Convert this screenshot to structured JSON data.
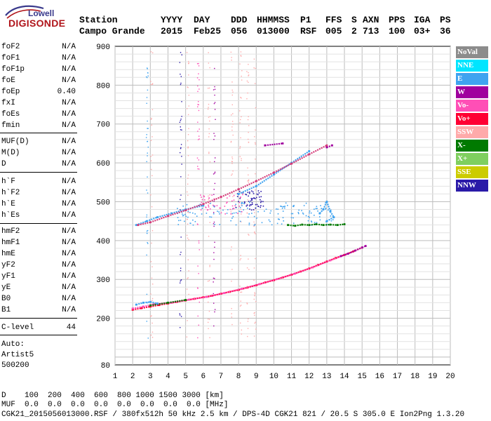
{
  "logo": {
    "top": "Lowell",
    "bottom": "DIGISONDE"
  },
  "header": {
    "labels": [
      "Station",
      "YYYY",
      "DAY",
      "DDD",
      "HHMMSS",
      "P1",
      "FFS",
      "S",
      "AXN",
      "PPS",
      "IGA",
      "PS"
    ],
    "values": [
      "Campo Grande",
      "2015",
      "Feb25",
      "056",
      "013000",
      "RSF",
      "005",
      "2",
      "713",
      "100",
      "03+",
      "36"
    ]
  },
  "params": {
    "group1": [
      {
        "name": "foF2",
        "value": "N/A"
      },
      {
        "name": "foF1",
        "value": "N/A"
      },
      {
        "name": "foF1p",
        "value": "N/A"
      },
      {
        "name": "foE",
        "value": "N/A"
      },
      {
        "name": "foEp",
        "value": "0.40"
      },
      {
        "name": "fxI",
        "value": "N/A"
      },
      {
        "name": "foEs",
        "value": "N/A"
      },
      {
        "name": "fmin",
        "value": "N/A"
      }
    ],
    "group2": [
      {
        "name": "MUF(D)",
        "value": "N/A"
      },
      {
        "name": "M(D)",
        "value": "N/A"
      },
      {
        "name": "D",
        "value": "N/A"
      }
    ],
    "group3": [
      {
        "name": "h`F",
        "value": "N/A"
      },
      {
        "name": "h`F2",
        "value": "N/A"
      },
      {
        "name": "h`E",
        "value": "N/A"
      },
      {
        "name": "h`Es",
        "value": "N/A"
      }
    ],
    "group4": [
      {
        "name": "hmF2",
        "value": "N/A"
      },
      {
        "name": "hmF1",
        "value": "N/A"
      },
      {
        "name": "hmE",
        "value": "N/A"
      },
      {
        "name": "yF2",
        "value": "N/A"
      },
      {
        "name": "yF1",
        "value": "N/A"
      },
      {
        "name": "yE",
        "value": "N/A"
      },
      {
        "name": "B0",
        "value": "N/A"
      },
      {
        "name": "B1",
        "value": "N/A"
      }
    ],
    "clevel": {
      "name": "C-level",
      "value": "44"
    }
  },
  "auto": {
    "line1": "Auto:",
    "line2": "Artist5",
    "line3": "500200"
  },
  "legend": [
    {
      "label": "NoVal",
      "color": "#8c8c8c"
    },
    {
      "label": "NNE",
      "color": "#00e5ff"
    },
    {
      "label": "E",
      "color": "#3fa3f0"
    },
    {
      "label": "W",
      "color": "#a0009e"
    },
    {
      "label": "Vo-",
      "color": "#ff4fb6"
    },
    {
      "label": "Vo+",
      "color": "#ff0033"
    },
    {
      "label": "SSW",
      "color": "#ffaaaa"
    },
    {
      "label": "X-",
      "color": "#007a00"
    },
    {
      "label": "X+",
      "color": "#7fcf5f"
    },
    {
      "label": "SSE",
      "color": "#cccc00"
    },
    {
      "label": "NNW",
      "color": "#2a1aa8"
    }
  ],
  "bottom": {
    "d_line": "D    100  200  400  600  800 1000 1500 3000 [km]",
    "muf_line": "MUF  0.0  0.0  0.0  0.0  0.0  0.0  0.0  0.0 [MHz]",
    "footer": "CGK21_2015056013000.RSF / 380fx512h 50 kHz 2.5 km / DPS-4D CGK21 821 / 20.5 S 305.0 E Ion2Png 1.3.20"
  },
  "chart_data": {
    "type": "scatter",
    "title": "",
    "xlabel": "",
    "ylabel": "",
    "xlim": [
      1,
      20
    ],
    "ylim": [
      80,
      900
    ],
    "xticks": [
      1,
      2,
      3,
      4,
      5,
      6,
      7,
      8,
      9,
      10,
      11,
      12,
      13,
      14,
      15,
      16,
      17,
      18,
      19,
      20
    ],
    "yticks": [
      80,
      200,
      300,
      400,
      500,
      600,
      700,
      800,
      900
    ],
    "grid": true,
    "series": [
      {
        "name": "Vo+",
        "color": "#ff0033",
        "points": [
          [
            2.0,
            222
          ],
          [
            2.5,
            226
          ],
          [
            3.0,
            230
          ],
          [
            3.5,
            234
          ],
          [
            4.0,
            238
          ],
          [
            4.5,
            242
          ],
          [
            5.0,
            246
          ],
          [
            5.5,
            250
          ],
          [
            6.0,
            254
          ],
          [
            6.5,
            258
          ],
          [
            7.0,
            263
          ],
          [
            7.5,
            268
          ],
          [
            8.0,
            273
          ],
          [
            8.5,
            279
          ],
          [
            9.0,
            285
          ],
          [
            9.5,
            292
          ],
          [
            10.0,
            298
          ],
          [
            10.5,
            305
          ],
          [
            11.0,
            312
          ],
          [
            11.5,
            320
          ],
          [
            12.0,
            328
          ],
          [
            12.5,
            337
          ],
          [
            13.0,
            346
          ],
          [
            13.5,
            355
          ],
          [
            14.0,
            363
          ],
          [
            14.5,
            372
          ],
          [
            15.0,
            382
          ]
        ]
      },
      {
        "name": "Vo-",
        "color": "#ff4fb6",
        "points": [
          [
            2.0,
            225
          ],
          [
            2.6,
            230
          ],
          [
            3.2,
            236
          ],
          [
            4.2,
            240
          ],
          [
            5.2,
            248
          ],
          [
            6.2,
            255
          ],
          [
            7.2,
            265
          ],
          [
            8.2,
            276
          ],
          [
            9.2,
            288
          ],
          [
            10.2,
            301
          ],
          [
            11.2,
            315
          ],
          [
            12.2,
            331
          ],
          [
            13.2,
            349
          ],
          [
            14.2,
            366
          ]
        ]
      },
      {
        "name": "W",
        "color": "#a0009e",
        "points": [
          [
            13.8,
            360
          ],
          [
            14.2,
            366
          ],
          [
            14.6,
            374
          ],
          [
            15.0,
            382
          ],
          [
            15.2,
            386
          ],
          [
            9.5,
            645
          ],
          [
            10.5,
            650
          ],
          [
            13.0,
            640
          ],
          [
            13.3,
            645
          ]
        ]
      },
      {
        "name": "X-",
        "color": "#007a00",
        "points": [
          [
            3.0,
            233
          ],
          [
            4.0,
            240
          ],
          [
            5.0,
            247
          ],
          [
            10.8,
            440
          ],
          [
            11.2,
            438
          ],
          [
            11.6,
            441
          ],
          [
            12.0,
            440
          ],
          [
            12.4,
            442
          ],
          [
            12.8,
            440
          ],
          [
            13.2,
            441
          ],
          [
            13.6,
            440
          ],
          [
            14.0,
            442
          ]
        ]
      },
      {
        "name": "E",
        "color": "#3fa3f0",
        "points": [
          [
            2.2,
            235
          ],
          [
            2.6,
            240
          ],
          [
            3.0,
            242
          ],
          [
            3.4,
            238
          ],
          [
            2.2,
            440
          ],
          [
            2.8,
            450
          ],
          [
            3.4,
            460
          ],
          [
            4.2,
            470
          ],
          [
            5.0,
            480
          ],
          [
            6.0,
            490
          ],
          [
            8.0,
            520
          ],
          [
            9.0,
            540
          ],
          [
            10.0,
            570
          ],
          [
            11.0,
            600
          ],
          [
            12.0,
            630
          ],
          [
            12.6,
            470
          ],
          [
            12.8,
            480
          ],
          [
            13.0,
            500
          ],
          [
            13.2,
            475
          ],
          [
            13.4,
            460
          ],
          [
            13.0,
            450
          ]
        ]
      },
      {
        "name": "F2 trace",
        "color": "#d43a78",
        "points": [
          [
            2.3,
            440
          ],
          [
            3.0,
            447
          ],
          [
            4.0,
            463
          ],
          [
            5.0,
            478
          ],
          [
            6.0,
            494
          ],
          [
            7.0,
            512
          ],
          [
            8.0,
            532
          ],
          [
            9.0,
            553
          ],
          [
            10.0,
            575
          ],
          [
            11.0,
            598
          ],
          [
            12.0,
            622
          ],
          [
            13.0,
            645
          ]
        ]
      }
    ]
  }
}
